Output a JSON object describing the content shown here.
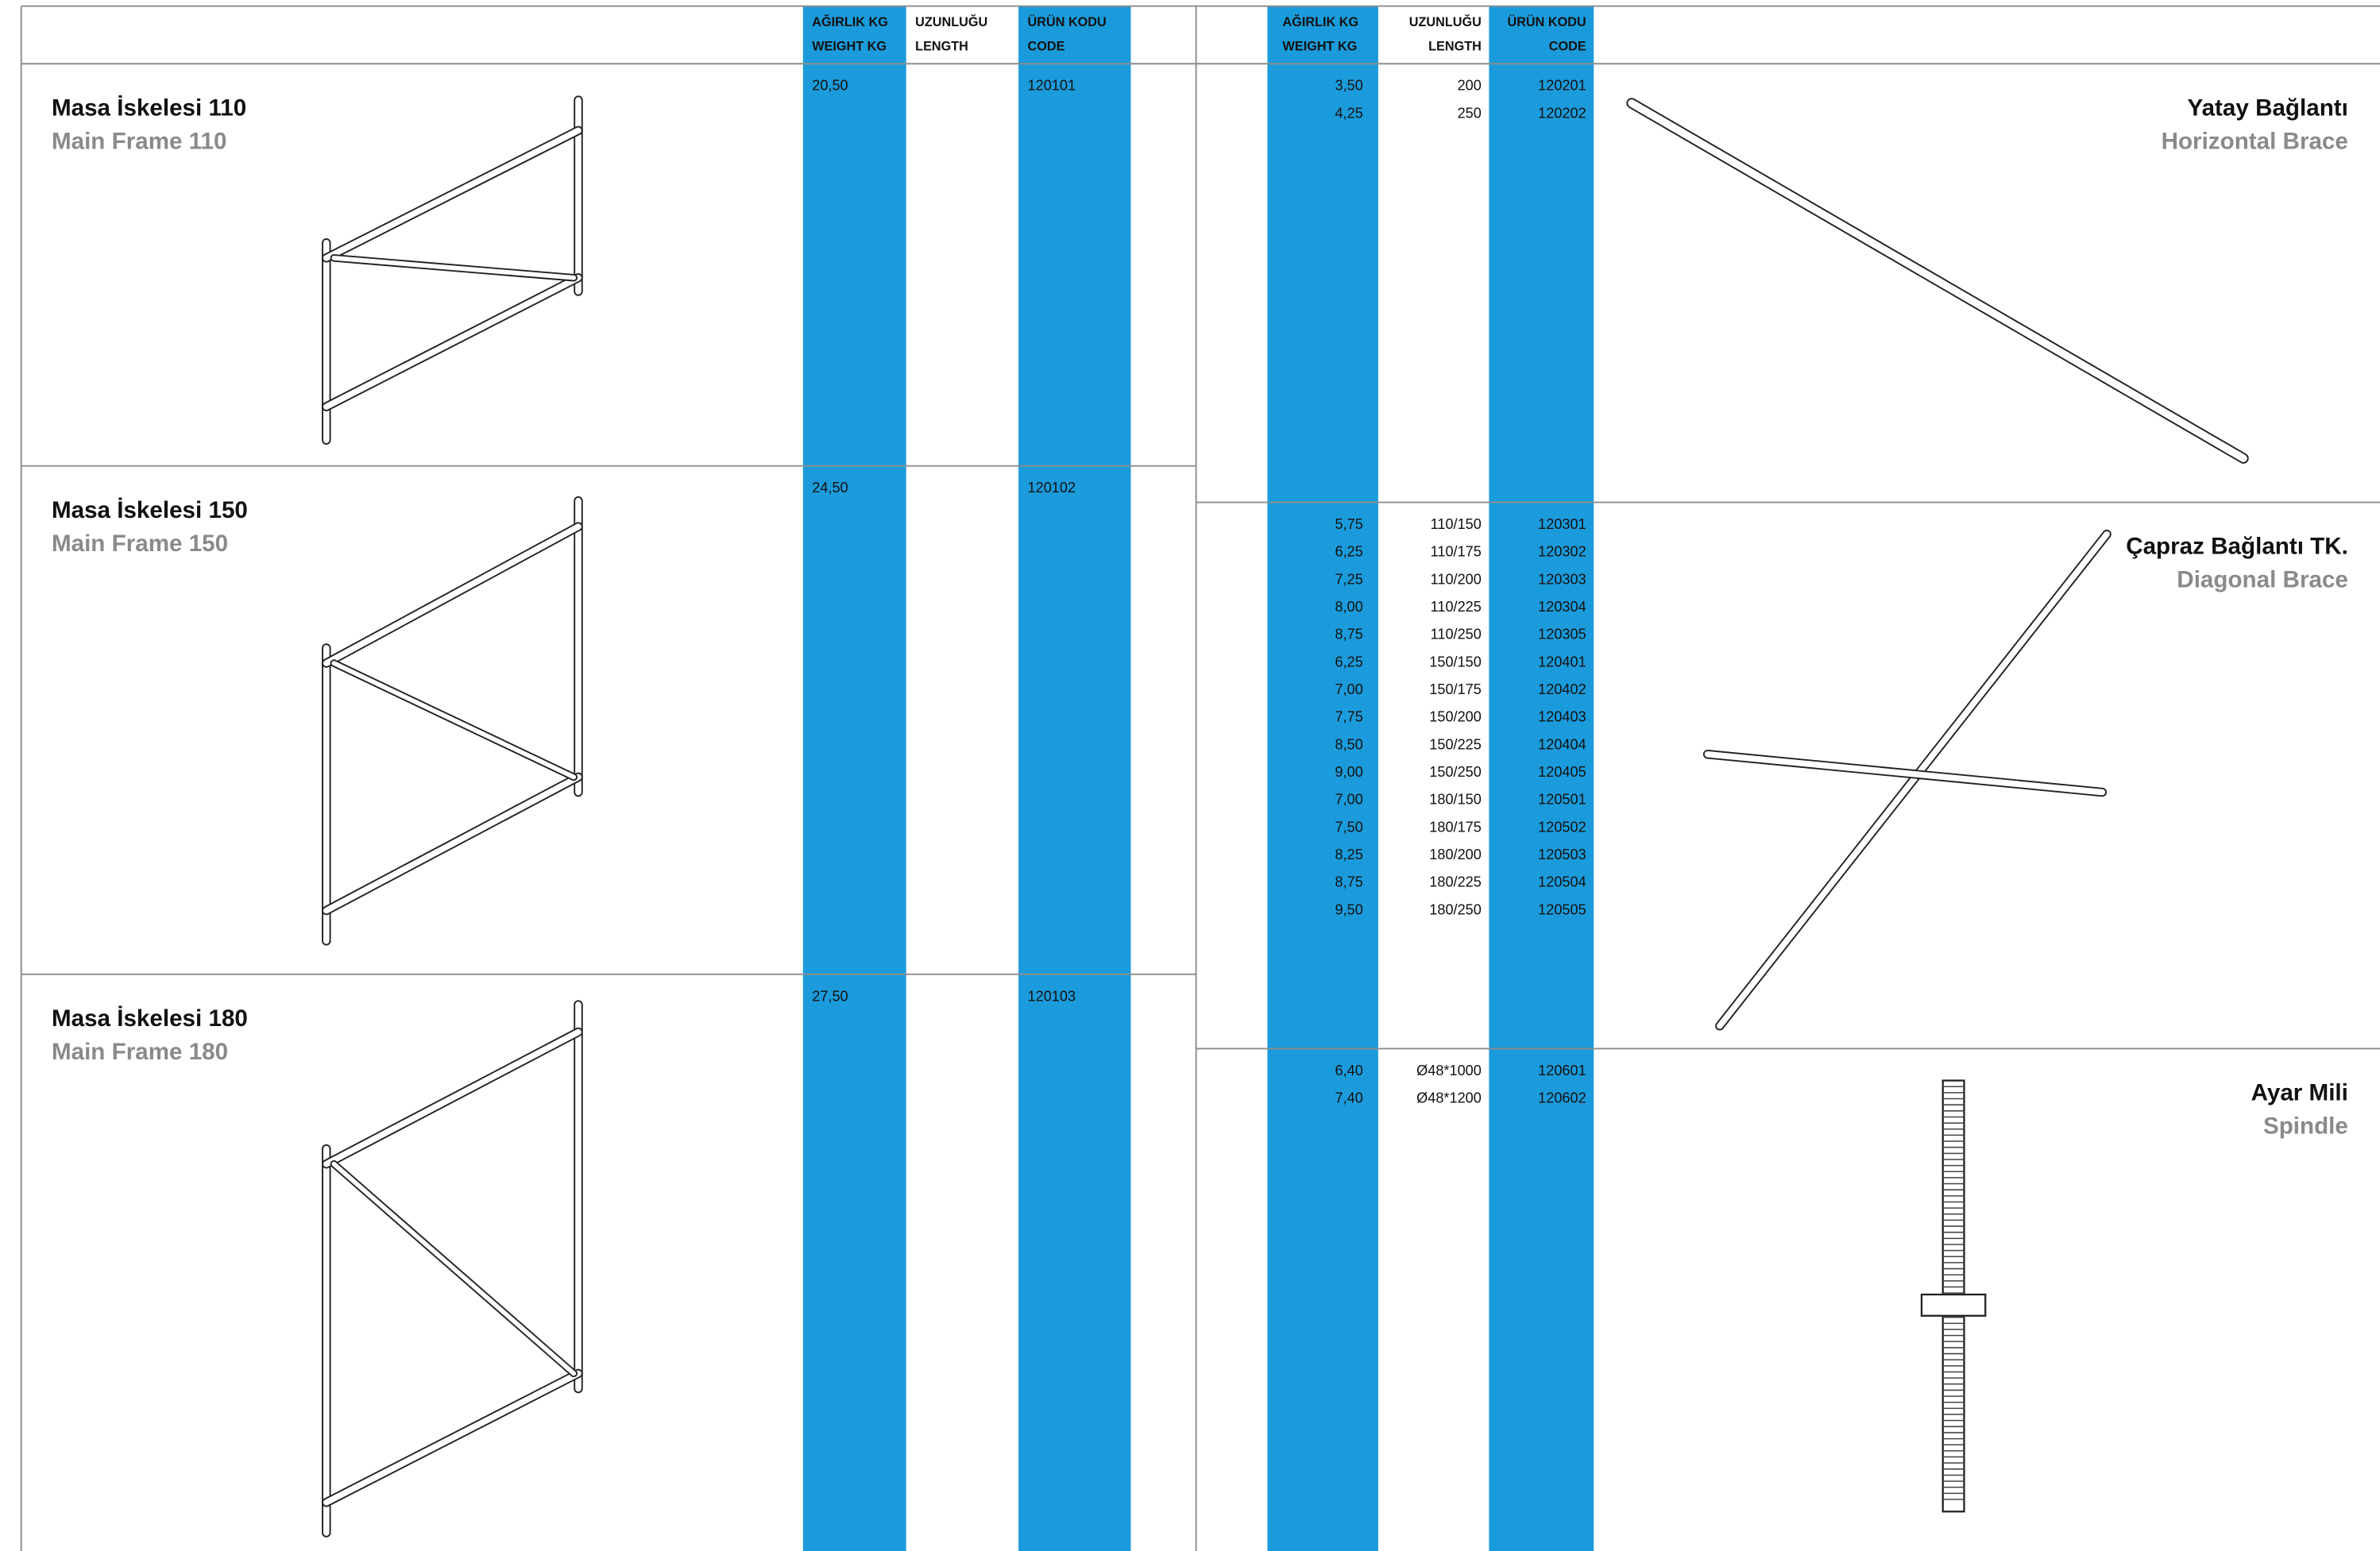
{
  "left_table": {
    "headers": {
      "weight": [
        "AĞIRLIK KG",
        "WEIGHT KG"
      ],
      "length": [
        "UZUNLUĞU",
        "LENGTH"
      ],
      "code": [
        "ÜRÜN KODU",
        "CODE"
      ]
    },
    "products": [
      {
        "name": "Masa İskelesi 110",
        "name_en": "Main Frame 110",
        "rows": [
          {
            "weight": "20,50",
            "code": "120101"
          }
        ]
      },
      {
        "name": "Masa İskelesi 150",
        "name_en": "Main Frame 150",
        "rows": [
          {
            "weight": "24,50",
            "code": "120102"
          }
        ]
      },
      {
        "name": "Masa İskelesi 180",
        "name_en": "Main Frame 180",
        "rows": [
          {
            "weight": "27,50",
            "code": "120103"
          }
        ]
      }
    ]
  },
  "right_table": {
    "headers": {
      "weight": [
        "AĞIRLIK KG",
        "WEIGHT KG"
      ],
      "length": [
        "UZUNLUĞU",
        "LENGTH"
      ],
      "code": [
        "ÜRÜN KODU",
        "CODE"
      ]
    },
    "products": [
      {
        "name": "Yatay Bağlantı",
        "name_en": "Horizontal Brace",
        "rows": [
          {
            "weight": "3,50",
            "length": "200",
            "code": "120201"
          },
          {
            "weight": "4,25",
            "length": "250",
            "code": "120202"
          }
        ]
      },
      {
        "name": "Çapraz Bağlantı TK.",
        "name_en": "Diagonal Brace",
        "rows": [
          {
            "weight": "5,75",
            "length": "110/150",
            "code": "120301"
          },
          {
            "weight": "6,25",
            "length": "110/175",
            "code": "120302"
          },
          {
            "weight": "7,25",
            "length": "110/200",
            "code": "120303"
          },
          {
            "weight": "8,00",
            "length": "110/225",
            "code": "120304"
          },
          {
            "weight": "8,75",
            "length": "110/250",
            "code": "120305"
          },
          {
            "weight": "6,25",
            "length": "150/150",
            "code": "120401"
          },
          {
            "weight": "7,00",
            "length": "150/175",
            "code": "120402"
          },
          {
            "weight": "7,75",
            "length": "150/200",
            "code": "120403"
          },
          {
            "weight": "8,50",
            "length": "150/225",
            "code": "120404"
          },
          {
            "weight": "9,00",
            "length": "150/250",
            "code": "120405"
          },
          {
            "weight": "7,00",
            "length": "180/150",
            "code": "120501"
          },
          {
            "weight": "7,50",
            "length": "180/175",
            "code": "120502"
          },
          {
            "weight": "8,25",
            "length": "180/200",
            "code": "120503"
          },
          {
            "weight": "8,75",
            "length": "180/225",
            "code": "120504"
          },
          {
            "weight": "9,50",
            "length": "180/250",
            "code": "120505"
          }
        ]
      },
      {
        "name": "Ayar Mili",
        "name_en": "Spindle",
        "rows": [
          {
            "weight": "6,40",
            "length": "Ø48*1000",
            "code": "120601"
          },
          {
            "weight": "7,40",
            "length": "Ø48*1200",
            "code": "120602"
          }
        ]
      }
    ]
  }
}
